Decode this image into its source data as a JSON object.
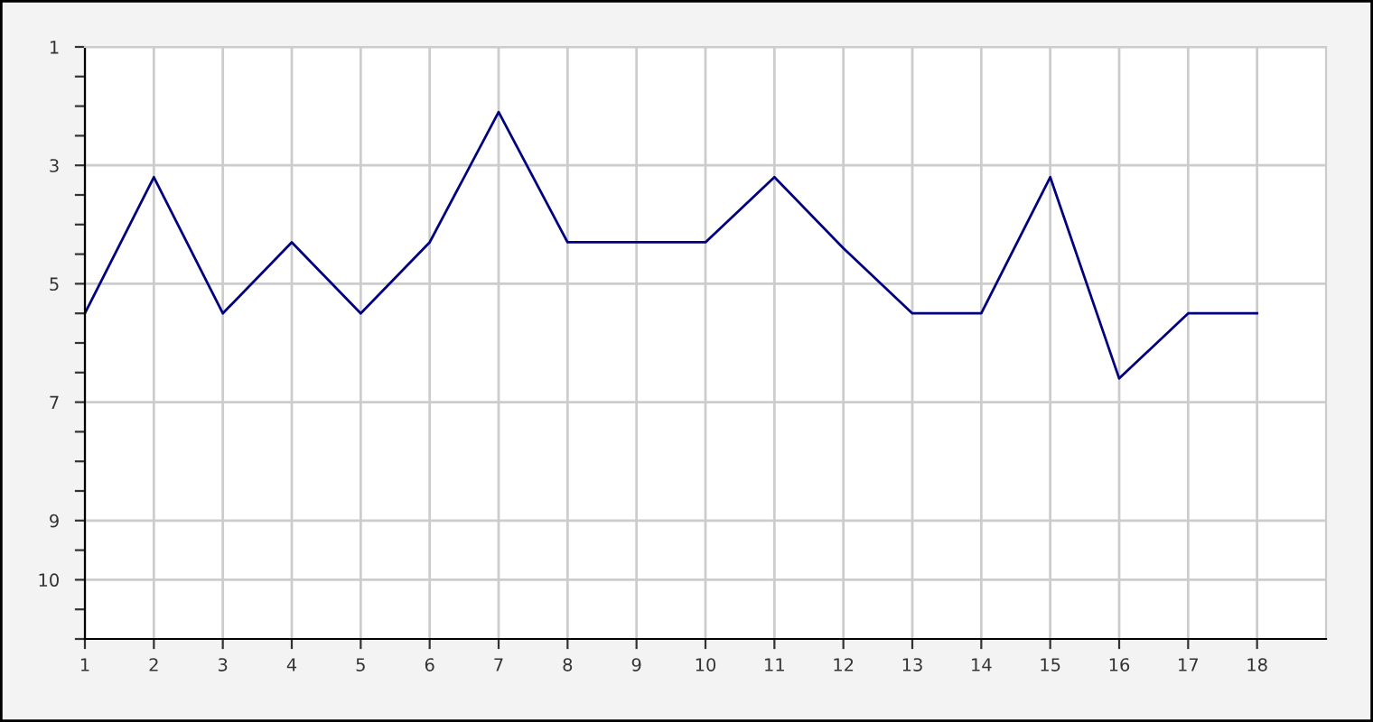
{
  "chart_data": {
    "type": "line",
    "x": [
      1,
      2,
      3,
      4,
      5,
      6,
      7,
      8,
      9,
      10,
      11,
      12,
      13,
      14,
      15,
      16,
      17,
      18
    ],
    "series": [
      {
        "color": "#000080",
        "values": [
          5.5,
          3.2,
          5.5,
          4.3,
          5.5,
          4.3,
          2.1,
          4.3,
          4.3,
          4.3,
          3.2,
          4.4,
          5.5,
          5.5,
          3.2,
          6.6,
          5.5,
          5.5
        ]
      }
    ],
    "xlim": [
      1,
      19
    ],
    "xticks": [
      1,
      2,
      3,
      4,
      5,
      6,
      7,
      8,
      9,
      10,
      11,
      12,
      13,
      14,
      15,
      16,
      17,
      18
    ],
    "ylim": [
      11,
      1
    ],
    "yticks": [
      1,
      {
        "value": 1.5,
        "label": null
      },
      {
        "value": 2,
        "label": null
      },
      {
        "value": 2.5,
        "label": null
      },
      3,
      {
        "value": 3.5,
        "label": null
      },
      {
        "value": 4,
        "label": null
      },
      {
        "value": 4.5,
        "label": null
      },
      5,
      {
        "value": 5.5,
        "label": null
      },
      {
        "value": 6,
        "label": null
      },
      {
        "value": 6.5,
        "label": null
      },
      7,
      {
        "value": 7.5,
        "label": null
      },
      {
        "value": 8,
        "label": null
      },
      {
        "value": 8.5,
        "label": null
      },
      9,
      {
        "value": 9.5,
        "label": null
      },
      10,
      {
        "value": 10.5,
        "label": null
      },
      {
        "value": 11,
        "label": null
      }
    ],
    "grid": true,
    "marker": "none",
    "line_style": "solid",
    "legend": false
  }
}
